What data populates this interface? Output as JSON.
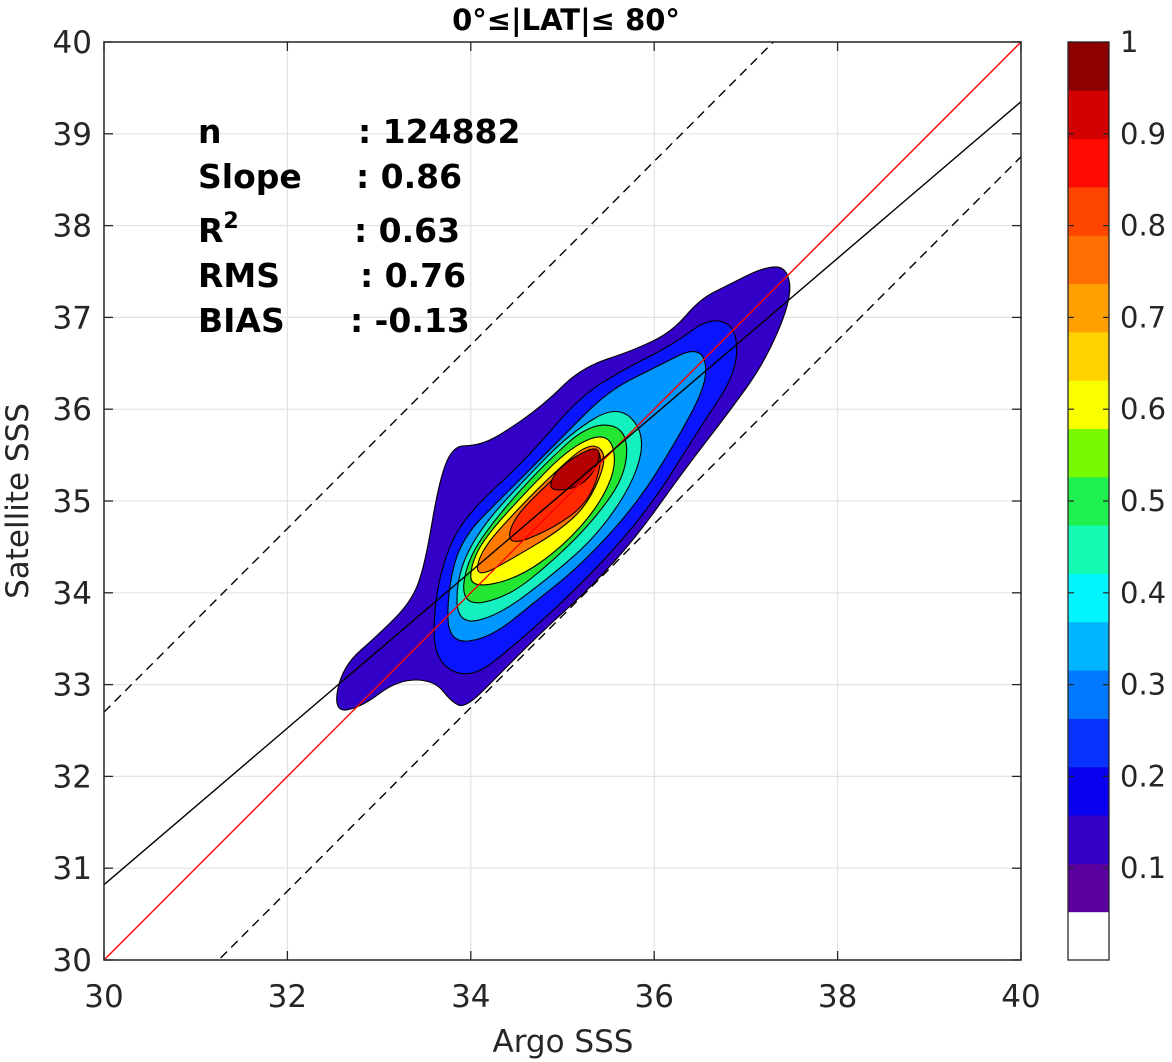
{
  "chart_data": {
    "type": "contour",
    "title": "0°≤|LAT|≤ 80°",
    "xlabel": "Argo SSS",
    "ylabel": "Satellite SSS",
    "xlim": [
      30,
      40
    ],
    "ylim": [
      30,
      40
    ],
    "xticks": [
      "30",
      "32",
      "34",
      "36",
      "38",
      "40"
    ],
    "yticks": [
      "30",
      "31",
      "32",
      "33",
      "34",
      "35",
      "36",
      "37",
      "38",
      "39",
      "40"
    ],
    "grid": true,
    "stats": [
      {
        "key": "n",
        "sep": ": 124882"
      },
      {
        "key": "Slope",
        "sep": ": 0.86"
      },
      {
        "key": "R",
        "sup": "2",
        "sep": ": 0.63"
      },
      {
        "key": "RMS",
        "sep": ": 0.76"
      },
      {
        "key": "BIAS",
        "sep": ": -0.13"
      }
    ],
    "reference_lines": [
      {
        "name": "one-to-one",
        "color": "#ff0000",
        "style": "solid",
        "slope": 1.0,
        "intercept": 0.0
      },
      {
        "name": "regression",
        "color": "#000000",
        "style": "solid",
        "slope": 0.853,
        "intercept": 5.23
      },
      {
        "name": "upper-bound",
        "color": "#000000",
        "style": "dashed",
        "slope": 1.0,
        "intercept": 2.7
      },
      {
        "name": "lower-bound",
        "color": "#000000",
        "style": "dashed",
        "slope": 1.0,
        "intercept": -1.25
      }
    ],
    "contour_levels": [
      {
        "level": 0.05,
        "color": "#3300c8",
        "points": [
          [
            32.5,
            32.7
          ],
          [
            32.8,
            32.75
          ],
          [
            33.2,
            33.05
          ],
          [
            33.6,
            33.05
          ],
          [
            33.8,
            32.8
          ],
          [
            33.95,
            32.75
          ],
          [
            34.3,
            33.1
          ],
          [
            34.8,
            33.6
          ],
          [
            35.3,
            34.05
          ],
          [
            35.8,
            34.6
          ],
          [
            36.3,
            35.3
          ],
          [
            36.8,
            35.95
          ],
          [
            37.2,
            36.5
          ],
          [
            37.5,
            37.2
          ],
          [
            37.45,
            37.55
          ],
          [
            37.2,
            37.55
          ],
          [
            36.8,
            37.35
          ],
          [
            36.5,
            37.2
          ],
          [
            36.2,
            36.85
          ],
          [
            35.8,
            36.65
          ],
          [
            35.2,
            36.45
          ],
          [
            34.8,
            36.05
          ],
          [
            34.3,
            35.7
          ],
          [
            34.05,
            35.6
          ],
          [
            33.8,
            35.6
          ],
          [
            33.65,
            35.2
          ],
          [
            33.5,
            34.3
          ],
          [
            33.35,
            33.9
          ],
          [
            33.0,
            33.55
          ],
          [
            32.6,
            33.2
          ]
        ]
      },
      {
        "level": 0.15,
        "color": "#0a14ff",
        "points": [
          [
            33.6,
            33.25
          ],
          [
            34.0,
            33.05
          ],
          [
            34.5,
            33.45
          ],
          [
            35.0,
            33.9
          ],
          [
            35.5,
            34.4
          ],
          [
            36.0,
            35.0
          ],
          [
            36.5,
            35.8
          ],
          [
            36.9,
            36.4
          ],
          [
            36.9,
            36.9
          ],
          [
            36.6,
            37.0
          ],
          [
            36.2,
            36.7
          ],
          [
            35.7,
            36.45
          ],
          [
            35.2,
            36.15
          ],
          [
            34.6,
            35.45
          ],
          [
            34.0,
            34.9
          ],
          [
            33.75,
            34.5
          ],
          [
            33.6,
            33.9
          ]
        ]
      },
      {
        "level": 0.25,
        "color": "#0096ff",
        "points": [
          [
            33.75,
            33.45
          ],
          [
            34.2,
            33.5
          ],
          [
            34.7,
            33.9
          ],
          [
            35.2,
            34.3
          ],
          [
            35.8,
            34.95
          ],
          [
            36.3,
            35.75
          ],
          [
            36.6,
            36.35
          ],
          [
            36.5,
            36.7
          ],
          [
            36.0,
            36.45
          ],
          [
            35.5,
            36.2
          ],
          [
            35.0,
            35.7
          ],
          [
            34.4,
            35.1
          ],
          [
            33.9,
            34.6
          ],
          [
            33.75,
            34.05
          ]
        ]
      },
      {
        "level": 0.35,
        "color": "#14f0c0",
        "points": [
          [
            33.85,
            33.65
          ],
          [
            34.3,
            33.75
          ],
          [
            34.9,
            34.2
          ],
          [
            35.4,
            34.65
          ],
          [
            35.8,
            35.25
          ],
          [
            35.9,
            35.75
          ],
          [
            35.6,
            36.05
          ],
          [
            35.1,
            35.75
          ],
          [
            34.6,
            35.25
          ],
          [
            34.1,
            34.7
          ],
          [
            33.85,
            34.2
          ]
        ]
      },
      {
        "level": 0.5,
        "color": "#23e632",
        "points": [
          [
            33.9,
            33.85
          ],
          [
            34.4,
            33.95
          ],
          [
            34.9,
            34.35
          ],
          [
            35.35,
            34.8
          ],
          [
            35.7,
            35.3
          ],
          [
            35.7,
            35.8
          ],
          [
            35.3,
            35.85
          ],
          [
            34.8,
            35.4
          ],
          [
            34.3,
            34.85
          ],
          [
            33.95,
            34.35
          ]
        ]
      },
      {
        "level": 0.6,
        "color": "#ffff00",
        "points": [
          [
            34.0,
            34.05
          ],
          [
            34.5,
            34.15
          ],
          [
            35.0,
            34.5
          ],
          [
            35.4,
            34.95
          ],
          [
            35.6,
            35.4
          ],
          [
            35.5,
            35.75
          ],
          [
            35.1,
            35.6
          ],
          [
            34.6,
            35.1
          ],
          [
            34.15,
            34.6
          ],
          [
            34.0,
            34.3
          ]
        ]
      },
      {
        "level": 0.75,
        "color": "#ff7800",
        "points": [
          [
            34.05,
            34.15
          ],
          [
            34.5,
            34.4
          ],
          [
            35.0,
            34.7
          ],
          [
            35.3,
            35.0
          ],
          [
            35.5,
            35.5
          ],
          [
            35.3,
            35.65
          ],
          [
            34.9,
            35.3
          ],
          [
            34.5,
            34.9
          ],
          [
            34.1,
            34.45
          ]
        ]
      },
      {
        "level": 0.85,
        "color": "#ff2800",
        "points": [
          [
            34.4,
            34.5
          ],
          [
            34.9,
            34.7
          ],
          [
            35.3,
            35.0
          ],
          [
            35.45,
            35.5
          ],
          [
            35.3,
            35.6
          ],
          [
            34.85,
            35.2
          ],
          [
            34.45,
            34.8
          ]
        ]
      },
      {
        "level": 0.95,
        "color": "#b40000",
        "points": [
          [
            34.85,
            35.1
          ],
          [
            35.2,
            35.15
          ],
          [
            35.4,
            35.4
          ],
          [
            35.4,
            35.6
          ],
          [
            35.15,
            35.5
          ],
          [
            34.9,
            35.3
          ]
        ]
      }
    ],
    "colorbar": {
      "ticks": [
        "0.1",
        "0.2",
        "0.3",
        "0.4",
        "0.5",
        "0.6",
        "0.7",
        "0.8",
        "0.9",
        "1"
      ],
      "tick_values": [
        0.1,
        0.2,
        0.3,
        0.4,
        0.5,
        0.6,
        0.7,
        0.8,
        0.9,
        1.0
      ],
      "colors": [
        "#ffffff",
        "#5a00a0",
        "#3300c8",
        "#0a00f0",
        "#0a32ff",
        "#0078ff",
        "#00b4ff",
        "#00f5ff",
        "#14fcb4",
        "#1ef050",
        "#78fa00",
        "#faff00",
        "#ffd200",
        "#ffa000",
        "#ff6e00",
        "#ff4600",
        "#ff0a00",
        "#d20000",
        "#8c0000"
      ]
    }
  }
}
